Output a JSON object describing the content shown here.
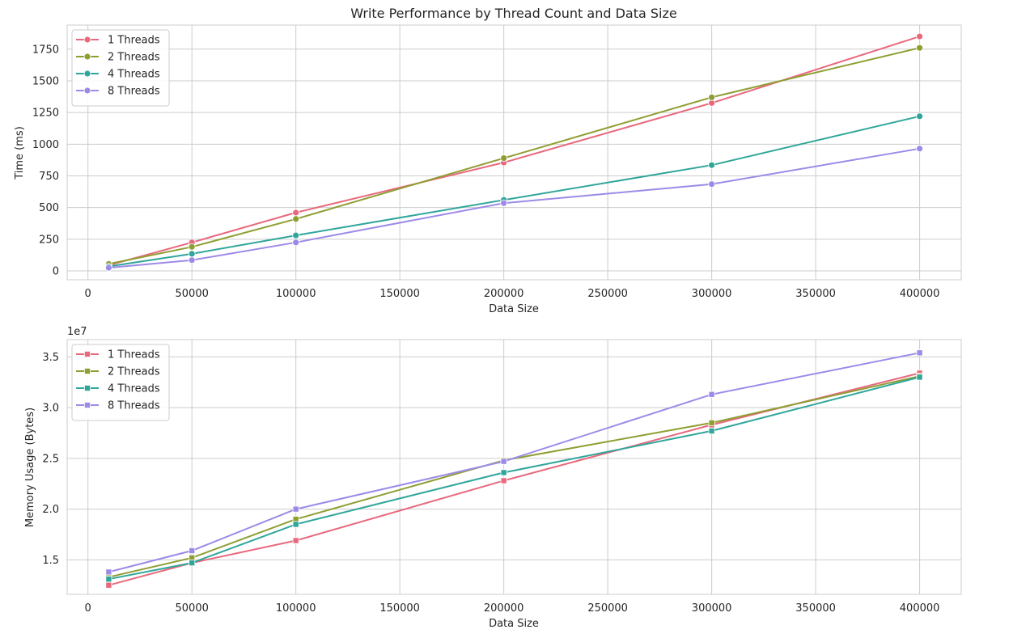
{
  "chart_data": [
    {
      "type": "line",
      "title": "Write Performance by Thread Count and Data Size",
      "xlabel": "Data Size",
      "ylabel": "Time (ms)",
      "offset_label": "",
      "marker": "circle",
      "grid": true,
      "legend_position": "top-left",
      "xlim": [
        -10000,
        420000
      ],
      "ylim": [
        -70,
        1940
      ],
      "xticks": [
        0,
        50000,
        100000,
        150000,
        200000,
        250000,
        300000,
        350000,
        400000
      ],
      "xtick_labels": [
        "0",
        "50000",
        "100000",
        "150000",
        "200000",
        "250000",
        "300000",
        "350000",
        "400000"
      ],
      "yticks": [
        0,
        250,
        500,
        750,
        1000,
        1250,
        1500,
        1750
      ],
      "ytick_labels": [
        "0",
        "250",
        "500",
        "750",
        "1000",
        "1250",
        "1500",
        "1750"
      ],
      "x": [
        10000,
        50000,
        100000,
        200000,
        300000,
        400000
      ],
      "series": [
        {
          "name": "1 Threads",
          "color": "#e8697e",
          "values": [
            45,
            225,
            460,
            855,
            1325,
            1850
          ]
        },
        {
          "name": "2 Threads",
          "color": "#8f9e31",
          "values": [
            55,
            190,
            410,
            890,
            1370,
            1760
          ]
        },
        {
          "name": "4 Threads",
          "color": "#30a69a",
          "values": [
            35,
            135,
            280,
            560,
            835,
            1220
          ]
        },
        {
          "name": "8 Threads",
          "color": "#9d8ae8",
          "values": [
            25,
            85,
            225,
            535,
            685,
            965
          ]
        }
      ]
    },
    {
      "type": "line",
      "title": "",
      "xlabel": "Data Size",
      "ylabel": "Memory Usage (Bytes)",
      "offset_label": "1e7",
      "marker": "square",
      "grid": true,
      "legend_position": "top-left",
      "xlim": [
        -10000,
        420000
      ],
      "ylim": [
        11600000,
        36700000
      ],
      "xticks": [
        0,
        50000,
        100000,
        150000,
        200000,
        250000,
        300000,
        350000,
        400000
      ],
      "xtick_labels": [
        "0",
        "50000",
        "100000",
        "150000",
        "200000",
        "250000",
        "300000",
        "350000",
        "400000"
      ],
      "yticks": [
        15000000,
        20000000,
        25000000,
        30000000,
        35000000
      ],
      "ytick_labels": [
        "1.5",
        "2.0",
        "2.5",
        "3.0",
        "3.5"
      ],
      "x": [
        10000,
        50000,
        100000,
        200000,
        300000,
        400000
      ],
      "series": [
        {
          "name": "1 Threads",
          "color": "#e8697e",
          "values": [
            12500000,
            14700000,
            16900000,
            22800000,
            28300000,
            33400000
          ]
        },
        {
          "name": "2 Threads",
          "color": "#8f9e31",
          "values": [
            13300000,
            15200000,
            19000000,
            24800000,
            28500000,
            33100000
          ]
        },
        {
          "name": "4 Threads",
          "color": "#30a69a",
          "values": [
            13100000,
            14700000,
            18500000,
            23600000,
            27700000,
            33000000
          ]
        },
        {
          "name": "8 Threads",
          "color": "#9d8ae8",
          "values": [
            13800000,
            15900000,
            20000000,
            24700000,
            31300000,
            35400000
          ]
        }
      ]
    }
  ]
}
